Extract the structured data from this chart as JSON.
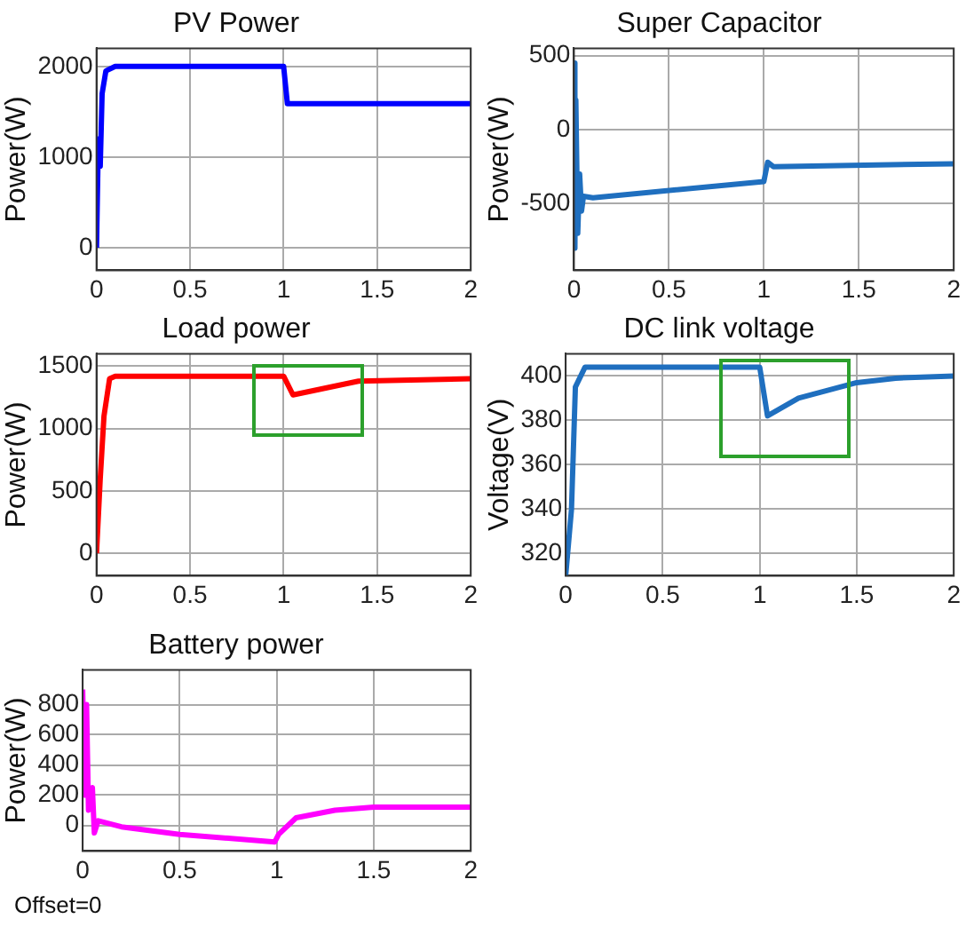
{
  "chart_data": [
    {
      "type": "line",
      "title": "PV Power",
      "ylabel": "Power(W)",
      "x": [
        0,
        0.01,
        0.02,
        0.03,
        0.05,
        0.1,
        1.0,
        1.02,
        2
      ],
      "series": [
        {
          "color": "#0000ff",
          "values": [
            0,
            1200,
            900,
            1700,
            1950,
            2000,
            2000,
            1590,
            1590
          ]
        }
      ],
      "xlim": [
        0,
        2
      ],
      "xticks": [
        0,
        0.5,
        1,
        1.5,
        2
      ],
      "ylim": [
        -250,
        2200
      ],
      "yticks": [
        0,
        1000,
        2000
      ],
      "grid": true
    },
    {
      "type": "line",
      "title": "Super Capacitor",
      "ylabel": "Power(W)",
      "x": [
        0,
        0.005,
        0.01,
        0.02,
        0.03,
        0.04,
        0.05,
        0.1,
        1.0,
        1.02,
        1.05,
        2
      ],
      "series": [
        {
          "color": "#1f6fbf",
          "values": [
            450,
            -800,
            200,
            -700,
            -300,
            -550,
            -450,
            -460,
            -350,
            -220,
            -250,
            -230
          ]
        }
      ],
      "xlim": [
        0,
        2
      ],
      "xticks": [
        0,
        0.5,
        1,
        1.5,
        2
      ],
      "ylim": [
        -950,
        550
      ],
      "yticks": [
        -500,
        0,
        500
      ],
      "grid": true
    },
    {
      "type": "line",
      "title": "Load power",
      "ylabel": "Power(W)",
      "x": [
        0,
        0.02,
        0.04,
        0.07,
        0.1,
        1.0,
        1.05,
        1.4,
        2
      ],
      "series": [
        {
          "color": "#ff0000",
          "values": [
            0,
            600,
            1100,
            1400,
            1420,
            1420,
            1270,
            1380,
            1400
          ]
        }
      ],
      "xlim": [
        0,
        2
      ],
      "xticks": [
        0,
        0.5,
        1,
        1.5,
        2
      ],
      "ylim": [
        -180,
        1600
      ],
      "yticks": [
        0,
        500,
        1000,
        1500
      ],
      "grid": true
    },
    {
      "type": "line",
      "title": "DC link voltage",
      "ylabel": "Voltage(V)",
      "x": [
        0,
        0.03,
        0.05,
        0.1,
        1.0,
        1.04,
        1.2,
        1.5,
        1.7,
        2
      ],
      "series": [
        {
          "color": "#1f6fbf",
          "values": [
            310,
            340,
            395,
            404,
            404,
            382,
            390,
            397,
            399,
            400
          ]
        }
      ],
      "xlim": [
        0,
        2
      ],
      "xticks": [
        0,
        0.5,
        1,
        1.5,
        2
      ],
      "ylim": [
        310,
        410
      ],
      "yticks": [
        320,
        340,
        360,
        380,
        400
      ],
      "grid": true
    },
    {
      "type": "line",
      "title": "Battery power",
      "ylabel": "Power(W)",
      "x": [
        0,
        0.01,
        0.02,
        0.03,
        0.05,
        0.06,
        0.08,
        0.2,
        0.5,
        0.99,
        1.01,
        1.1,
        1.3,
        1.5,
        2
      ],
      "series": [
        {
          "color": "#ff00ff",
          "values": [
            900,
            200,
            800,
            100,
            250,
            -50,
            30,
            -10,
            -60,
            -110,
            -60,
            50,
            100,
            120,
            120
          ]
        }
      ],
      "xlim": [
        0,
        2
      ],
      "xticks": [
        0,
        0.5,
        1,
        1.5,
        2
      ],
      "ylim": [
        -170,
        1030
      ],
      "yticks": [
        0,
        200,
        400,
        600,
        800
      ],
      "grid": true,
      "annotations": [
        "Offset=0"
      ]
    }
  ]
}
